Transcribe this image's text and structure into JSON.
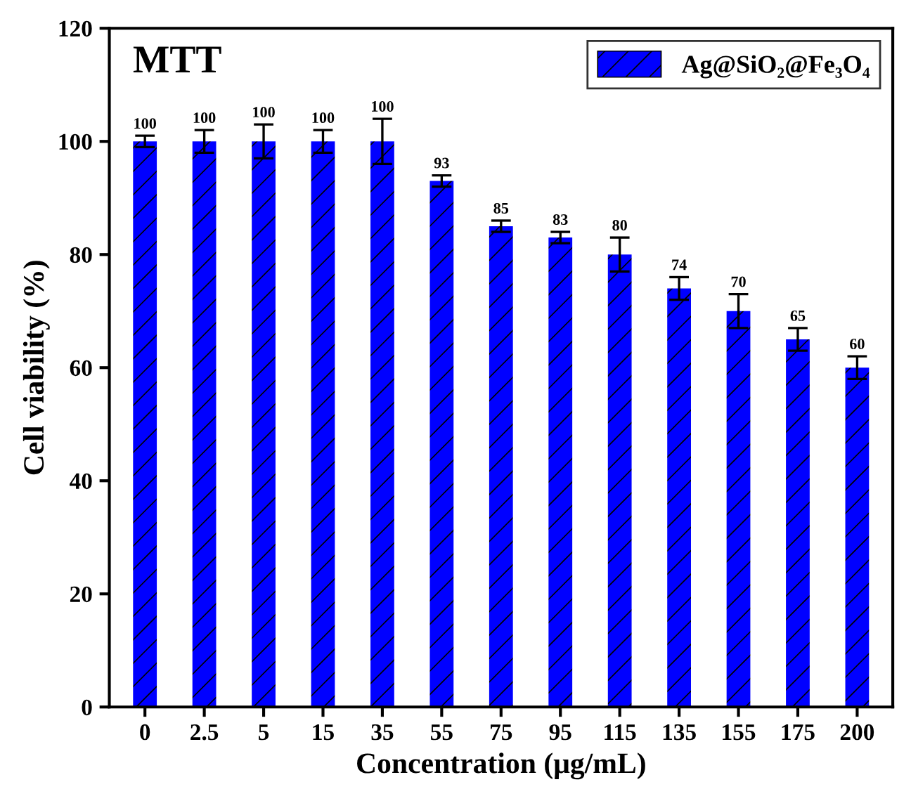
{
  "chart_data": {
    "type": "bar",
    "xlabel": "Concentration (μg/mL)",
    "ylabel": "Cell viability (%)",
    "annotations": [
      "MTT"
    ],
    "categories": [
      "0",
      "2.5",
      "5",
      "15",
      "35",
      "55",
      "75",
      "95",
      "115",
      "135",
      "155",
      "175",
      "200"
    ],
    "series": [
      {
        "name": "Ag@SiO₂@Fe₃O₄",
        "color": "#0000ff",
        "values": [
          100,
          100,
          100,
          100,
          100,
          93,
          85,
          83,
          80,
          74,
          70,
          65,
          60
        ],
        "errors": [
          1,
          2,
          3,
          2,
          4,
          1,
          1,
          1,
          3,
          2,
          3,
          2,
          2
        ]
      }
    ],
    "data_labels": true,
    "ylim": [
      0,
      120
    ],
    "yticks": [
      0,
      20,
      40,
      60,
      80,
      100,
      120
    ],
    "grid": false,
    "legend": "top right"
  }
}
